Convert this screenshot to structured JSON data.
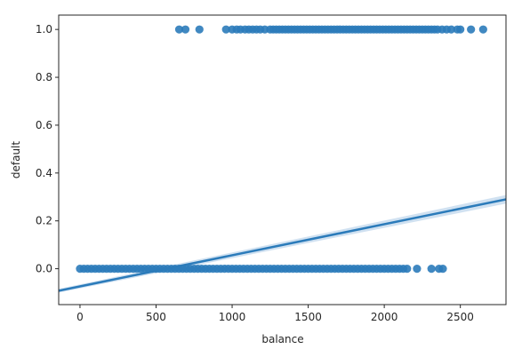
{
  "chart_data": {
    "type": "scatter",
    "title": "",
    "xlabel": "balance",
    "ylabel": "default",
    "xlim": [
      -140,
      2800
    ],
    "ylim": [
      -0.15,
      1.06
    ],
    "xticks": [
      0,
      500,
      1000,
      1500,
      2000,
      2500
    ],
    "xtick_labels": [
      "0",
      "500",
      "1000",
      "1500",
      "2000",
      "2500"
    ],
    "yticks": [
      0.0,
      0.2,
      0.4,
      0.6,
      0.8,
      1.0
    ],
    "ytick_labels": [
      "0.0",
      "0.2",
      "0.4",
      "0.6",
      "0.8",
      "1.0"
    ],
    "grid": false,
    "point_color": "#2b7bba",
    "line_color": "#2b7bba",
    "ci_color": "#a9c8e6",
    "series": [
      {
        "kind": "points",
        "y": 1,
        "x": [
          652,
          693,
          785,
          960,
          1000,
          1030,
          1055,
          1085,
          1110,
          1135,
          1160,
          1185,
          1215,
          1250,
          1270,
          1290,
          1310,
          1330,
          1350,
          1370,
          1390,
          1410,
          1430,
          1450,
          1470,
          1490,
          1510,
          1530,
          1550,
          1570,
          1590,
          1610,
          1630,
          1650,
          1670,
          1690,
          1710,
          1730,
          1750,
          1770,
          1790,
          1810,
          1830,
          1850,
          1870,
          1890,
          1910,
          1930,
          1950,
          1970,
          1990,
          2010,
          2030,
          2050,
          2070,
          2090,
          2110,
          2130,
          2150,
          2170,
          2190,
          2210,
          2230,
          2250,
          2270,
          2290,
          2310,
          2330,
          2350,
          2380,
          2410,
          2440,
          2480,
          2500,
          2570,
          2650
        ]
      },
      {
        "kind": "points",
        "y": 0,
        "x": [
          0,
          25,
          50,
          75,
          100,
          125,
          150,
          175,
          200,
          225,
          250,
          275,
          300,
          325,
          350,
          375,
          400,
          425,
          450,
          475,
          500,
          525,
          550,
          575,
          600,
          625,
          650,
          675,
          700,
          725,
          750,
          775,
          800,
          825,
          850,
          875,
          900,
          925,
          950,
          975,
          1000,
          1025,
          1050,
          1075,
          1100,
          1125,
          1150,
          1175,
          1200,
          1225,
          1250,
          1275,
          1300,
          1325,
          1350,
          1375,
          1400,
          1425,
          1450,
          1475,
          1500,
          1525,
          1550,
          1575,
          1600,
          1625,
          1650,
          1675,
          1700,
          1725,
          1750,
          1775,
          1800,
          1825,
          1850,
          1875,
          1900,
          1925,
          1950,
          1975,
          2000,
          2025,
          2050,
          2075,
          2100,
          2125,
          2150,
          2215,
          2310,
          2360,
          2385
        ]
      },
      {
        "kind": "regression",
        "x": [
          -140,
          2800
        ],
        "y": [
          -0.092,
          0.29
        ],
        "ci_halfwidth_ends": [
          0.008,
          0.018
        ]
      }
    ]
  }
}
